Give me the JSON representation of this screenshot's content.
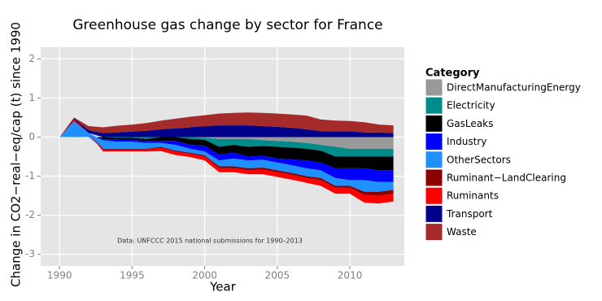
{
  "chart_data": {
    "type": "stacked-area",
    "title": "Greenhouse gas change by sector for France",
    "x_label": "Year",
    "y_label": "Change in CO2−real−eq/cap (t) since 1990",
    "annotation": "Data: UNFCCC 2015 national submissions for 1990–2013",
    "legend_title": "Category",
    "legend_position": "right",
    "grid": true,
    "xlim": [
      1988.7,
      2013.75
    ],
    "xticks": [
      1990,
      1995,
      2000,
      2005,
      2010
    ],
    "ylim": [
      -3.3,
      2.3
    ],
    "yticks": [
      -3,
      -2,
      -1,
      0,
      1,
      2
    ],
    "x": [
      1990,
      1991,
      1992,
      1993,
      1994,
      1995,
      1996,
      1997,
      1998,
      1999,
      2000,
      2001,
      2002,
      2003,
      2004,
      2005,
      2006,
      2007,
      2008,
      2009,
      2010,
      2011,
      2012,
      2013
    ],
    "series": [
      {
        "name": "DirectManufacturingEnergy",
        "color": "#999999",
        "values": [
          0,
          0,
          0,
          0,
          0,
          0,
          0,
          0,
          0,
          0,
          -0.02,
          -0.05,
          -0.05,
          -0.05,
          -0.08,
          -0.1,
          -0.12,
          -0.15,
          -0.2,
          -0.25,
          -0.3,
          -0.3,
          -0.3,
          -0.3
        ]
      },
      {
        "name": "Electricity",
        "color": "#008b8b",
        "values": [
          0,
          0.02,
          0,
          0,
          -0.02,
          -0.02,
          -0.05,
          0,
          0,
          -0.05,
          -0.05,
          -0.2,
          -0.15,
          -0.2,
          -0.15,
          -0.15,
          -0.15,
          -0.15,
          -0.15,
          -0.25,
          -0.2,
          -0.2,
          -0.2,
          -0.2
        ]
      },
      {
        "name": "GasLeaks",
        "color": "#000000",
        "values": [
          0,
          0,
          0,
          -0.05,
          -0.05,
          -0.05,
          -0.05,
          -0.1,
          -0.1,
          -0.15,
          -0.15,
          -0.2,
          -0.2,
          -0.25,
          -0.25,
          -0.3,
          -0.3,
          -0.3,
          -0.3,
          -0.3,
          -0.3,
          -0.3,
          -0.35,
          -0.35
        ]
      },
      {
        "name": "Industry",
        "color": "#0000ff",
        "values": [
          0,
          0,
          0,
          -0.03,
          -0.05,
          -0.05,
          -0.05,
          -0.05,
          -0.1,
          -0.1,
          -0.15,
          -0.15,
          -0.15,
          -0.1,
          -0.1,
          -0.1,
          -0.15,
          -0.2,
          -0.2,
          -0.25,
          -0.3,
          -0.3,
          -0.3,
          -0.3
        ]
      },
      {
        "name": "OtherSectors",
        "color": "#1e90ff",
        "values": [
          0,
          0.38,
          0.1,
          -0.22,
          -0.18,
          -0.18,
          -0.15,
          -0.1,
          -0.15,
          -0.1,
          -0.1,
          -0.15,
          -0.2,
          -0.2,
          -0.2,
          -0.2,
          -0.2,
          -0.2,
          -0.2,
          -0.2,
          -0.15,
          -0.3,
          -0.25,
          -0.2
        ]
      },
      {
        "name": "Ruminant−LandClearing",
        "color": "#8b0000",
        "values": [
          0,
          0,
          0,
          -0.02,
          -0.02,
          -0.02,
          -0.02,
          -0.03,
          -0.03,
          -0.03,
          -0.03,
          -0.05,
          -0.05,
          -0.05,
          -0.05,
          -0.05,
          -0.05,
          -0.05,
          -0.05,
          -0.05,
          -0.05,
          -0.08,
          -0.1,
          -0.1
        ]
      },
      {
        "name": "Ruminants",
        "color": "#ff0000",
        "values": [
          0,
          0.05,
          0,
          -0.05,
          -0.05,
          -0.05,
          -0.05,
          -0.08,
          -0.08,
          -0.08,
          -0.1,
          -0.1,
          -0.1,
          -0.1,
          -0.12,
          -0.12,
          -0.12,
          -0.12,
          -0.15,
          -0.15,
          -0.15,
          -0.2,
          -0.2,
          -0.2
        ]
      },
      {
        "name": "Transport",
        "color": "#00008b",
        "values": [
          0,
          0.03,
          0.08,
          0.1,
          0.12,
          0.14,
          0.16,
          0.2,
          0.22,
          0.25,
          0.28,
          0.3,
          0.3,
          0.3,
          0.28,
          0.26,
          0.24,
          0.2,
          0.15,
          0.15,
          0.15,
          0.12,
          0.12,
          0.1
        ]
      },
      {
        "name": "Waste",
        "color": "#a52a2a",
        "values": [
          0,
          0.02,
          0.1,
          0.15,
          0.17,
          0.18,
          0.2,
          0.22,
          0.25,
          0.27,
          0.28,
          0.3,
          0.32,
          0.33,
          0.34,
          0.34,
          0.34,
          0.35,
          0.3,
          0.27,
          0.26,
          0.26,
          0.2,
          0.2
        ]
      }
    ]
  }
}
